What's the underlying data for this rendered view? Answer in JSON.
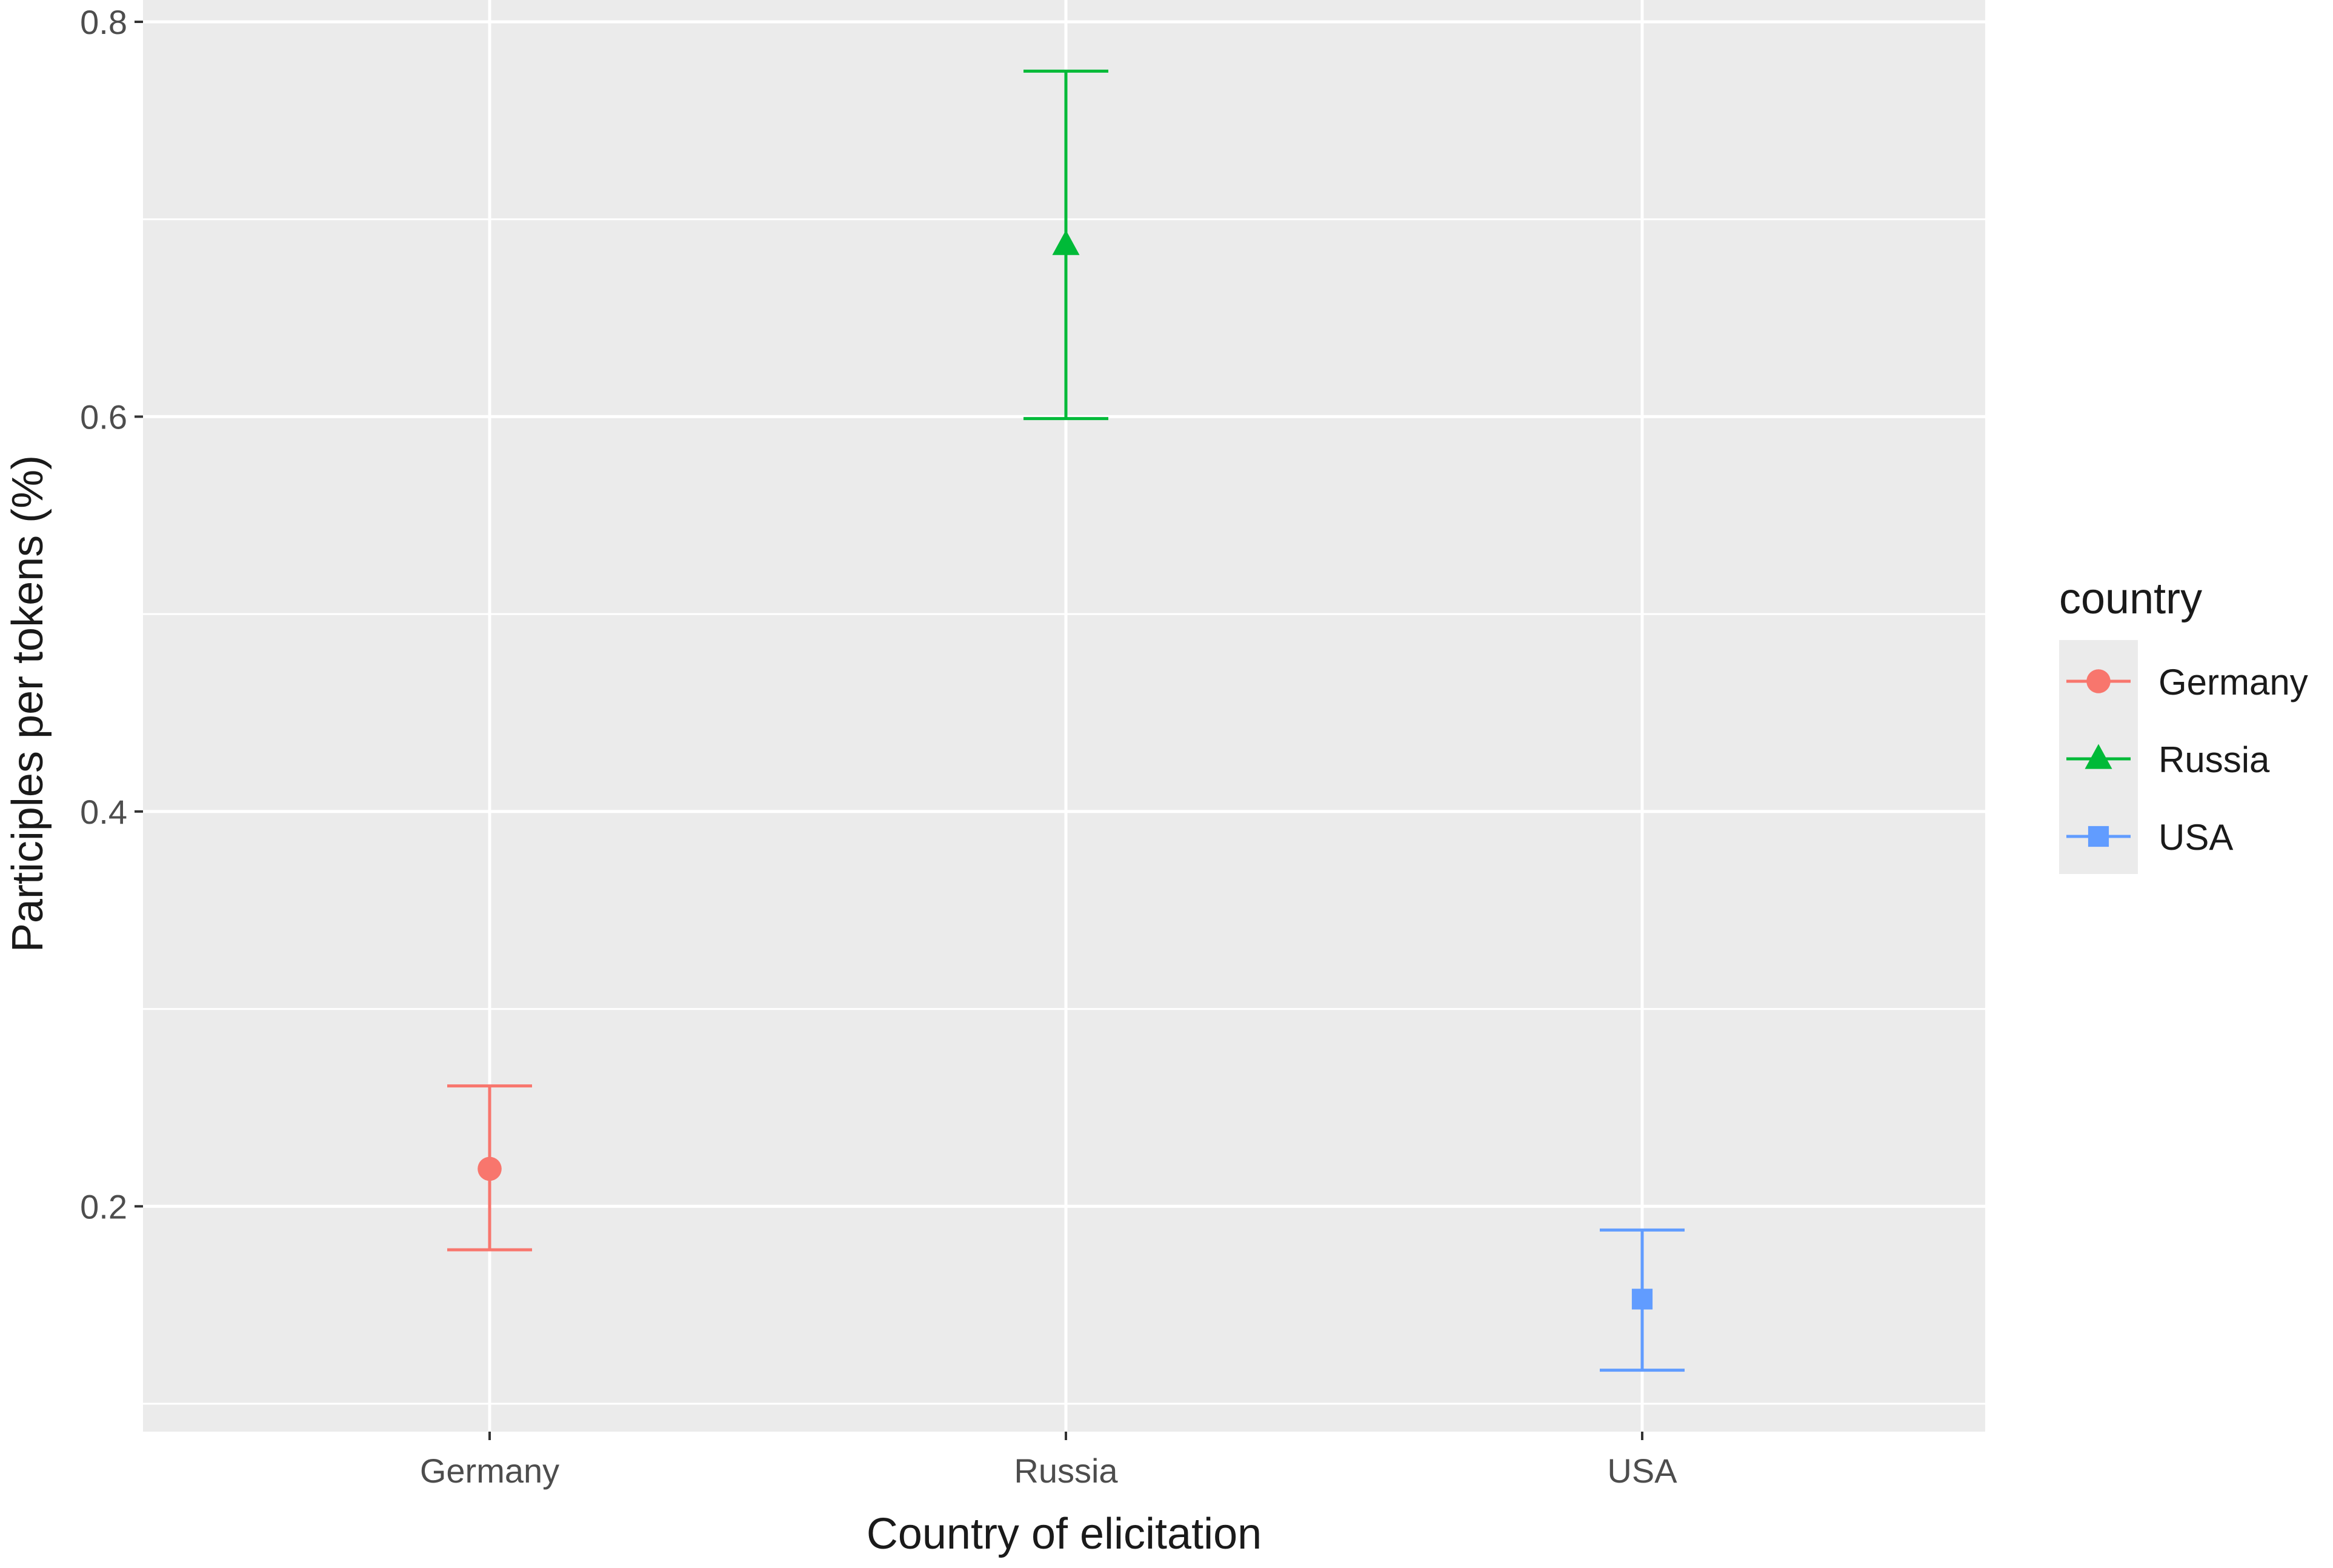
{
  "chart_data": {
    "type": "scatter",
    "subtype": "point-errorbar",
    "title": "",
    "xlabel": "Country of elicitation",
    "ylabel": "Participles per tokens (%)",
    "categories": [
      "Germany",
      "Russia",
      "USA"
    ],
    "ylim": [
      0.1,
      0.8
    ],
    "y_ticks": [
      "0.2",
      "0.4",
      "0.6",
      "0.8"
    ],
    "grid": true,
    "legend": {
      "title": "country",
      "position": "right"
    },
    "series": [
      {
        "name": "Germany",
        "category": "Germany",
        "value": 0.219,
        "lower": 0.178,
        "upper": 0.261,
        "color": "#F8766D",
        "shape": "circle"
      },
      {
        "name": "Russia",
        "category": "Russia",
        "value": 0.687,
        "lower": 0.599,
        "upper": 0.775,
        "color": "#00BA38",
        "shape": "triangle"
      },
      {
        "name": "USA",
        "category": "USA",
        "value": 0.153,
        "lower": 0.117,
        "upper": 0.188,
        "color": "#619CFF",
        "shape": "square"
      }
    ],
    "colors": {
      "panel_background": "#EBEBEB",
      "grid": "#FFFFFF"
    }
  }
}
